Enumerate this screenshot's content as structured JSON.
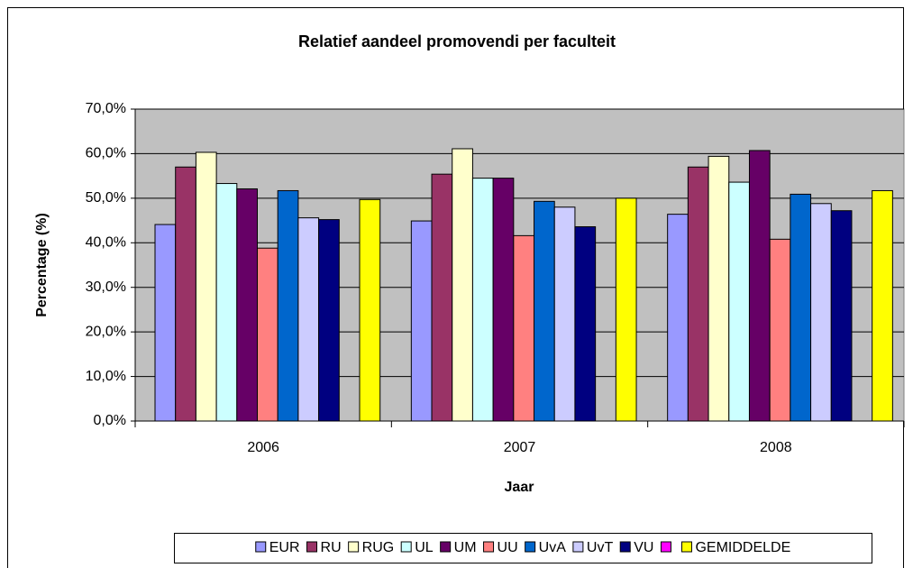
{
  "chart_data": {
    "type": "bar",
    "title": "Relatief aandeel promovendi per faculteit",
    "x_label": "Jaar",
    "y_label": "Percentage (%)",
    "categories": [
      "2006",
      "2007",
      "2008"
    ],
    "series": [
      {
        "name": "EUR",
        "color": "#9999ff",
        "values": [
          44.1,
          44.9,
          46.4
        ]
      },
      {
        "name": "RU",
        "color": "#993366",
        "values": [
          57.0,
          55.4,
          57.0
        ]
      },
      {
        "name": "RUG",
        "color": "#ffffcc",
        "values": [
          60.3,
          61.1,
          59.4
        ]
      },
      {
        "name": "UL",
        "color": "#ccffff",
        "values": [
          53.3,
          54.5,
          53.6
        ]
      },
      {
        "name": "UM",
        "color": "#660066",
        "values": [
          52.1,
          54.5,
          60.7
        ]
      },
      {
        "name": "UU",
        "color": "#ff8080",
        "values": [
          38.8,
          41.6,
          40.8
        ]
      },
      {
        "name": "UvA",
        "color": "#0066cc",
        "values": [
          51.7,
          49.3,
          50.9
        ]
      },
      {
        "name": "UvT",
        "color": "#ccccff",
        "values": [
          45.6,
          48.0,
          48.8
        ]
      },
      {
        "name": "VU",
        "color": "#000080",
        "values": [
          45.2,
          43.6,
          47.2
        ]
      },
      {
        "name": null,
        "color": "#ff00ff",
        "values": [
          null,
          null,
          null
        ]
      },
      {
        "name": "GEMIDDELDE",
        "color": "#ffff00",
        "values": [
          49.7,
          50.0,
          51.7
        ]
      }
    ],
    "ylim": [
      0,
      70
    ],
    "yticks": [
      {
        "value": 0,
        "label": "0,0%"
      },
      {
        "value": 10,
        "label": "10,0%"
      },
      {
        "value": 20,
        "label": "20,0%"
      },
      {
        "value": 30,
        "label": "30,0%"
      },
      {
        "value": 40,
        "label": "40,0%"
      },
      {
        "value": 50,
        "label": "50,0%"
      },
      {
        "value": 60,
        "label": "60,0%"
      },
      {
        "value": 70,
        "label": "70,0%"
      }
    ],
    "grid": true,
    "legend": "bottom"
  }
}
